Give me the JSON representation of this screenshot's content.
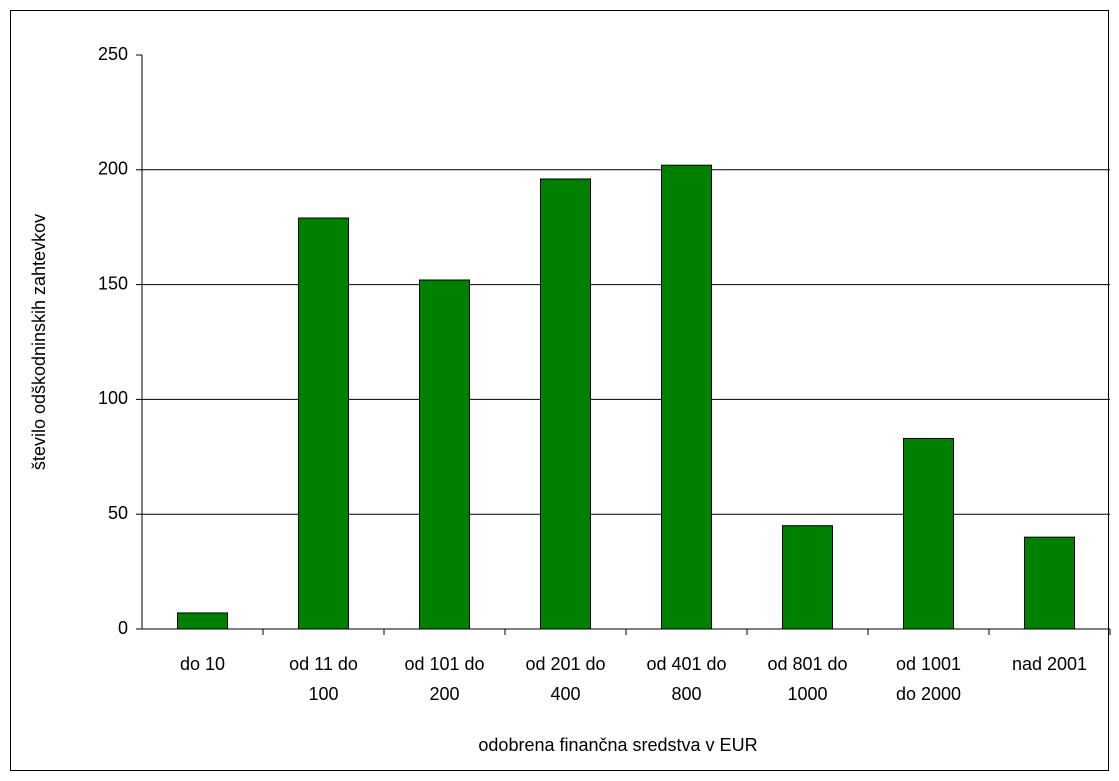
{
  "chart_data": {
    "type": "bar",
    "y_label": "število odškodninskih zahtevkov",
    "x_label": "odobrena finančna sredstva v EUR",
    "categories": [
      "do 10",
      "od 11 do 100",
      "od 101 do 200",
      "od 201 do 400",
      "od 401 do 800",
      "od 801 do 1000",
      "od 1001 do 2000",
      "nad 2001"
    ],
    "values": [
      7,
      179,
      152,
      196,
      202,
      45,
      83,
      40
    ],
    "color": "#008000",
    "ylim": [
      0,
      250
    ],
    "yticks": [
      0,
      50,
      100,
      150,
      200,
      250
    ],
    "grid": true
  }
}
